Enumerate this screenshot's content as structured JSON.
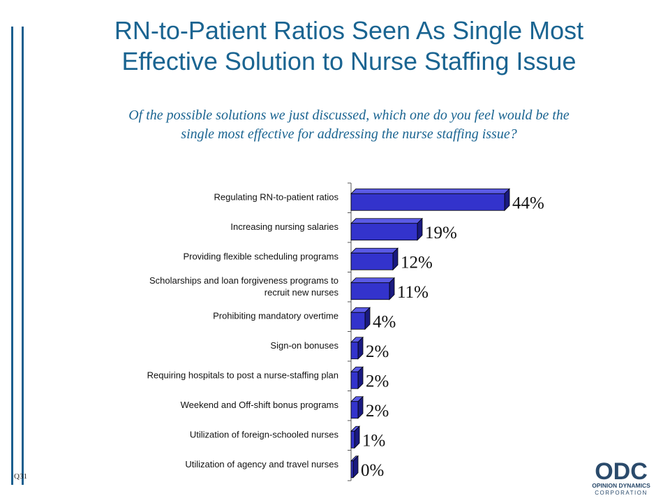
{
  "slide": {
    "title": "RN-to-Patient Ratios Seen As Single Most\nEffective Solution to Nurse Staffing Issue",
    "subtitle": "Of the possible solutions we just discussed, which one do you feel would be the\nsingle most effective for addressing the nurse staffing issue?",
    "question_code": "Q31"
  },
  "logo": {
    "text": "ODC",
    "line1": "OPINION DYNAMICS",
    "line2": "CORPORATION",
    "color": "#2a4a6b"
  },
  "colors": {
    "title": "#1a6491",
    "bar_front": "#3333cc",
    "bar_top": "#5a5ae6",
    "bar_side": "#1a1a80"
  },
  "chart_data": {
    "type": "bar",
    "orientation": "horizontal",
    "categories": [
      "Regulating RN-to-patient ratios",
      "Increasing nursing salaries",
      "Providing flexible scheduling programs",
      "Scholarships and loan forgiveness programs to\nrecruit new nurses",
      "Prohibiting mandatory overtime",
      "Sign-on bonuses",
      "Requiring hospitals to post a nurse-staffing plan",
      "Weekend and Off-shift bonus programs",
      "Utilization of foreign-schooled nurses",
      "Utilization of agency and travel nurses"
    ],
    "values": [
      44,
      19,
      12,
      11,
      4,
      2,
      2,
      2,
      1,
      0
    ],
    "value_labels": [
      "44%",
      "19%",
      "12%",
      "11%",
      "4%",
      "2%",
      "2%",
      "2%",
      "1%",
      "0%"
    ],
    "grid": false,
    "legend": "none"
  }
}
